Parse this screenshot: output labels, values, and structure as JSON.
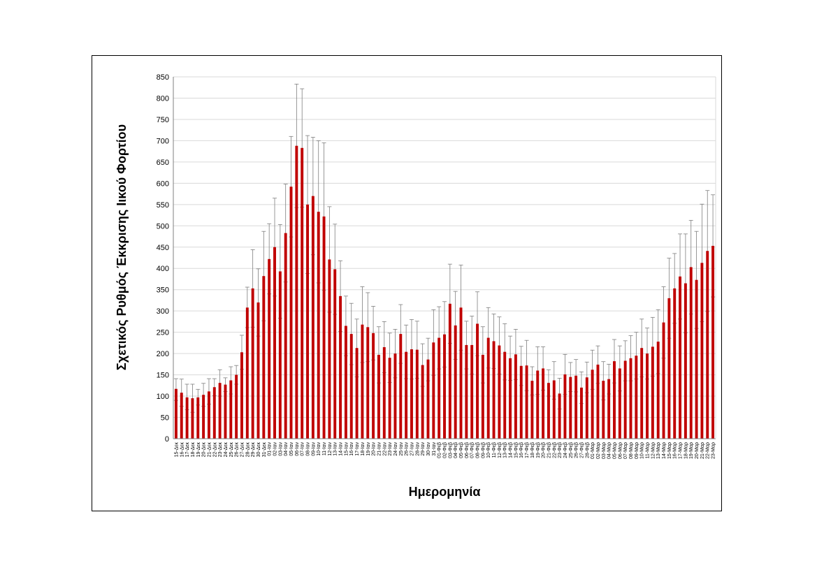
{
  "chart_data": {
    "type": "bar",
    "title": "",
    "xlabel": "Ημερομηνία",
    "ylabel": "Σχετικός Ρυθμός Έκκρισης Ιικού Φορτίου",
    "ylim": [
      0,
      850
    ],
    "yticks": [
      0,
      50,
      100,
      150,
      200,
      250,
      300,
      350,
      400,
      450,
      500,
      550,
      600,
      650,
      700,
      750,
      800,
      850
    ],
    "grid": true,
    "bar_color": "#c00000",
    "error_color": "#7f7f7f",
    "categories": [
      "15-Δεκ",
      "16-Δεκ",
      "17-Δεκ",
      "18-Δεκ",
      "19-Δεκ",
      "20-Δεκ",
      "21-Δεκ",
      "22-Δεκ",
      "23-Δεκ",
      "24-Δεκ",
      "25-Δεκ",
      "26-Δεκ",
      "27-Δεκ",
      "28-Δεκ",
      "29-Δεκ",
      "30-Δεκ",
      "31-Δεκ",
      "01-Ιαν",
      "02-Ιαν",
      "03-Ιαν",
      "04-Ιαν",
      "05-Ιαν",
      "06-Ιαν",
      "07-Ιαν",
      "08-Ιαν",
      "09-Ιαν",
      "10-Ιαν",
      "11-Ιαν",
      "12-Ιαν",
      "13-Ιαν",
      "14-Ιαν",
      "15-Ιαν",
      "16-Ιαν",
      "17-Ιαν",
      "18-Ιαν",
      "19-Ιαν",
      "20-Ιαν",
      "21-Ιαν",
      "22-Ιαν",
      "23-Ιαν",
      "24-Ιαν",
      "25-Ιαν",
      "26-Ιαν",
      "27-Ιαν",
      "28-Ιαν",
      "29-Ιαν",
      "30-Ιαν",
      "31-Ιαν",
      "01-Φεβ",
      "02-Φεβ",
      "03-Φεβ",
      "04-Φεβ",
      "05-Φεβ",
      "06-Φεβ",
      "07-Φεβ",
      "08-Φεβ",
      "09-Φεβ",
      "10-Φεβ",
      "11-Φεβ",
      "12-Φεβ",
      "13-Φεβ",
      "14-Φεβ",
      "15-Φεβ",
      "16-Φεβ",
      "17-Φεβ",
      "18-Φεβ",
      "19-Φεβ",
      "20-Φεβ",
      "21-Φεβ",
      "22-Φεβ",
      "23-Φεβ",
      "24-Φεβ",
      "25-Φεβ",
      "26-Φεβ",
      "27-Φεβ",
      "28-Φεβ",
      "01-Μαρ",
      "02-Μαρ",
      "03-Μαρ",
      "04-Μαρ",
      "05-Μαρ",
      "06-Μαρ",
      "07-Μαρ",
      "08-Μαρ",
      "09-Μαρ",
      "10-Μαρ",
      "11-Μαρ",
      "12-Μαρ",
      "13-Μαρ",
      "14-Μαρ",
      "15-Μαρ",
      "16-Μαρ",
      "17-Μαρ",
      "18-Μαρ",
      "19-Μαρ",
      "20-Μαρ",
      "21-Μαρ",
      "22-Μαρ",
      "23-Μαρ"
    ],
    "values": [
      117,
      108,
      97,
      95,
      97,
      103,
      111,
      121,
      131,
      127,
      137,
      150,
      203,
      308,
      353,
      320,
      382,
      422,
      450,
      393,
      483,
      592,
      688,
      683,
      550,
      570,
      533,
      522,
      421,
      398,
      335,
      265,
      246,
      213,
      268,
      262,
      248,
      197,
      215,
      190,
      200,
      246,
      204,
      210,
      209,
      173,
      186,
      226,
      237,
      245,
      317,
      266,
      308,
      220,
      220,
      270,
      197,
      237,
      229,
      219,
      204,
      189,
      198,
      171,
      172,
      136,
      160,
      165,
      131,
      137,
      106,
      151,
      145,
      148,
      120,
      144,
      162,
      174,
      136,
      140,
      182,
      165,
      183,
      189,
      195,
      213,
      200,
      216,
      228,
      273,
      330,
      353,
      381,
      365,
      403,
      373,
      413,
      441,
      453
    ],
    "error_high": [
      141,
      140,
      128,
      128,
      116,
      130,
      141,
      141,
      162,
      143,
      169,
      172,
      243,
      356,
      444,
      399,
      487,
      505,
      565,
      503,
      598,
      710,
      833,
      822,
      712,
      708,
      700,
      695,
      545,
      504,
      418,
      335,
      318,
      281,
      357,
      343,
      311,
      263,
      275,
      248,
      257,
      315,
      267,
      280,
      276,
      223,
      236,
      303,
      310,
      322,
      410,
      346,
      408,
      276,
      288,
      345,
      263,
      308,
      293,
      286,
      270,
      241,
      257,
      217,
      231,
      169,
      216,
      216,
      162,
      181,
      142,
      198,
      179,
      186,
      157,
      180,
      208,
      218,
      181,
      175,
      233,
      218,
      230,
      242,
      250,
      281,
      260,
      285,
      303,
      357,
      424,
      435,
      481,
      481,
      513,
      487,
      551,
      583,
      573
    ],
    "error_low": [
      90,
      76,
      68,
      62,
      79,
      76,
      81,
      101,
      100,
      111,
      105,
      128,
      163,
      261,
      262,
      241,
      277,
      340,
      335,
      283,
      368,
      474,
      543,
      544,
      388,
      432,
      366,
      349,
      297,
      292,
      252,
      195,
      174,
      145,
      179,
      181,
      185,
      131,
      155,
      132,
      143,
      177,
      141,
      140,
      142,
      123,
      136,
      149,
      164,
      168,
      224,
      186,
      208,
      164,
      152,
      195,
      131,
      166,
      165,
      152,
      138,
      137,
      139,
      125,
      113,
      103,
      104,
      114,
      100,
      93,
      70,
      104,
      111,
      110,
      83,
      108,
      116,
      130,
      91,
      105,
      131,
      112,
      136,
      136,
      140,
      145,
      140,
      147,
      153,
      189,
      236,
      271,
      281,
      249,
      293,
      259,
      275,
      299,
      333
    ]
  }
}
